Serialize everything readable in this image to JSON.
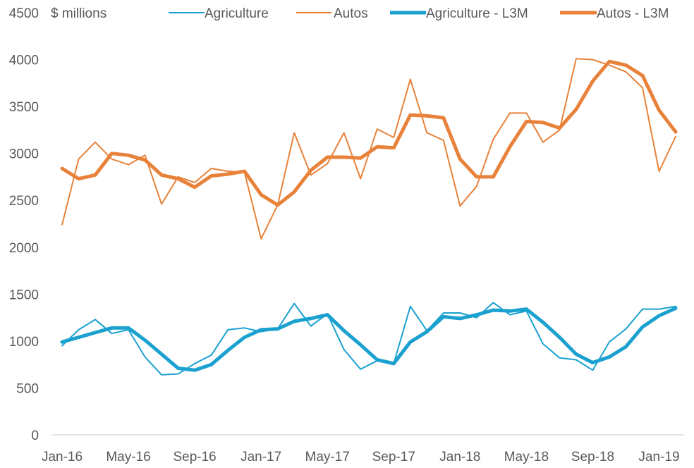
{
  "chart_data": {
    "type": "line",
    "title": "",
    "unit_label": "$ millions",
    "xlabel": "",
    "ylabel": "",
    "ylim": [
      0,
      4500
    ],
    "yticks": [
      0,
      500,
      1000,
      1500,
      2000,
      2500,
      3000,
      3500,
      4000,
      4500
    ],
    "grid": false,
    "legend_position": "top",
    "x": [
      "Jan-16",
      "Feb-16",
      "Mar-16",
      "Apr-16",
      "May-16",
      "Jun-16",
      "Jul-16",
      "Aug-16",
      "Sep-16",
      "Oct-16",
      "Nov-16",
      "Dec-16",
      "Jan-17",
      "Feb-17",
      "Mar-17",
      "Apr-17",
      "May-17",
      "Jun-17",
      "Jul-17",
      "Aug-17",
      "Sep-17",
      "Oct-17",
      "Nov-17",
      "Dec-17",
      "Jan-18",
      "Feb-18",
      "Mar-18",
      "Apr-18",
      "May-18",
      "Jun-18",
      "Jul-18",
      "Aug-18",
      "Sep-18",
      "Oct-18",
      "Nov-18",
      "Dec-18",
      "Jan-19",
      "Feb-19"
    ],
    "xtick_labels": [
      "Jan-16",
      "May-16",
      "Sep-16",
      "Jan-17",
      "May-17",
      "Sep-17",
      "Jan-18",
      "May-18",
      "Sep-18",
      "Jan-19"
    ],
    "series": [
      {
        "name": "Agriculture",
        "color": "#1ba1d0",
        "weight": "thin",
        "values": [
          950,
          1120,
          1230,
          1080,
          1120,
          830,
          640,
          650,
          760,
          850,
          1120,
          1140,
          1100,
          1130,
          1400,
          1160,
          1290,
          910,
          700,
          790,
          760,
          1370,
          1110,
          1300,
          1300,
          1250,
          1410,
          1280,
          1320,
          970,
          820,
          800,
          690,
          990,
          1130,
          1340,
          1340,
          1370
        ]
      },
      {
        "name": "Autos",
        "color": "#e8823a",
        "weight": "thin",
        "values": [
          2240,
          2940,
          3120,
          2940,
          2880,
          2980,
          2460,
          2750,
          2690,
          2840,
          2810,
          2800,
          2090,
          2450,
          3220,
          2770,
          2890,
          3220,
          2730,
          3260,
          3170,
          3790,
          3220,
          3140,
          2440,
          2650,
          3150,
          3430,
          3430,
          3120,
          3250,
          4010,
          4000,
          3940,
          3870,
          3700,
          2810,
          3180
        ]
      },
      {
        "name": "Agriculture - L3M",
        "color": "#1ba1d0",
        "weight": "thick",
        "values": [
          990,
          1040,
          1090,
          1140,
          1140,
          1010,
          860,
          710,
          690,
          750,
          900,
          1040,
          1120,
          1130,
          1210,
          1240,
          1280,
          1110,
          960,
          800,
          760,
          990,
          1100,
          1260,
          1240,
          1280,
          1330,
          1320,
          1340,
          1200,
          1040,
          860,
          770,
          830,
          940,
          1150,
          1270,
          1350
        ]
      },
      {
        "name": "Autos - L3M",
        "color": "#e8823a",
        "weight": "thick",
        "values": [
          2840,
          2730,
          2770,
          3000,
          2980,
          2930,
          2770,
          2730,
          2640,
          2760,
          2780,
          2810,
          2560,
          2450,
          2590,
          2820,
          2960,
          2960,
          2950,
          3070,
          3060,
          3410,
          3400,
          3380,
          2940,
          2750,
          2750,
          3070,
          3340,
          3330,
          3270,
          3470,
          3770,
          3980,
          3940,
          3830,
          3460,
          3230
        ]
      }
    ]
  }
}
